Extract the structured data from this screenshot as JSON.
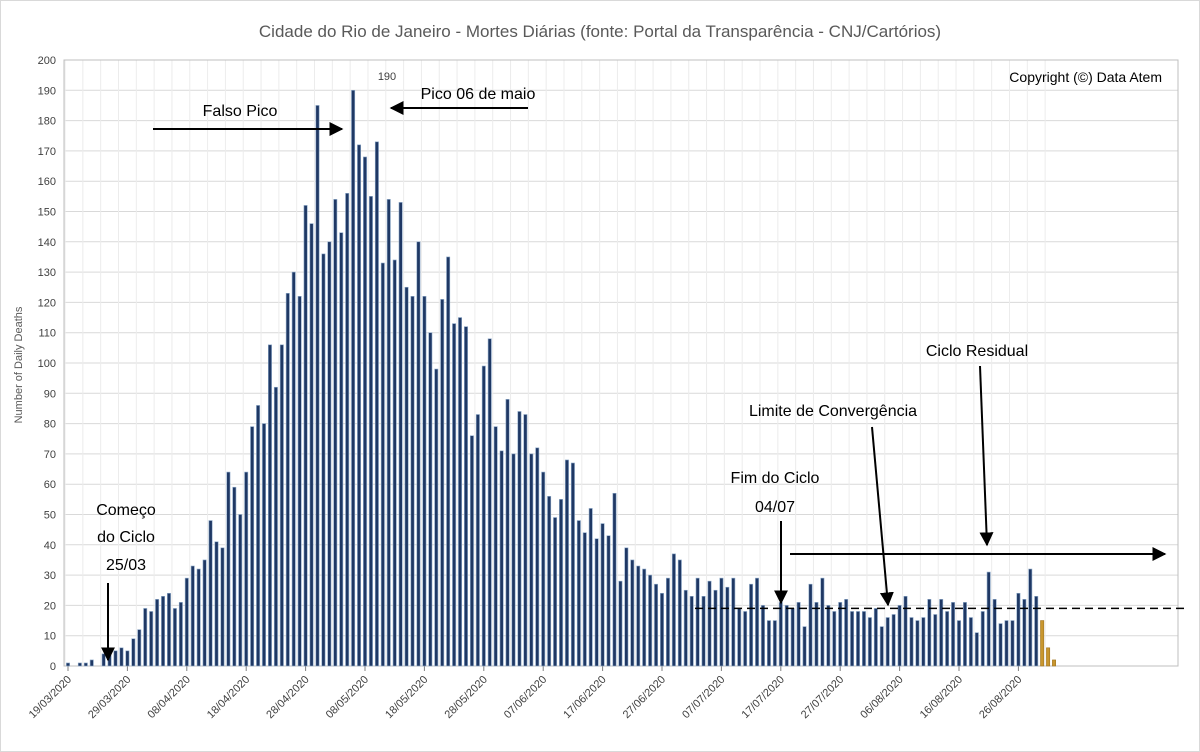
{
  "chart_data": {
    "type": "bar",
    "title": "Cidade do Rio de Janeiro  - Mortes Diárias (fonte: Portal da Transparência - CNJ/Cartórios)",
    "ylabel": "Number of Daily Deaths",
    "xlabel": "",
    "ylim": [
      0,
      200
    ],
    "ytick_step": 10,
    "grid": "both",
    "start_date": "19/03/2020",
    "x_tick_labels": [
      "19/03/2020",
      "29/03/2020",
      "08/04/2020",
      "18/04/2020",
      "28/04/2020",
      "08/05/2020",
      "18/05/2020",
      "28/05/2020",
      "07/06/2020",
      "17/06/2020",
      "27/06/2020",
      "07/07/2020",
      "17/07/2020",
      "27/07/2020",
      "06/08/2020",
      "16/08/2020",
      "26/08/2020"
    ],
    "values": [
      1,
      0,
      1,
      1,
      2,
      0,
      4,
      4,
      5,
      6,
      5,
      9,
      12,
      19,
      18,
      22,
      23,
      24,
      19,
      21,
      29,
      33,
      32,
      35,
      48,
      41,
      39,
      64,
      59,
      50,
      64,
      79,
      86,
      80,
      106,
      92,
      106,
      123,
      130,
      122,
      152,
      146,
      185,
      136,
      140,
      154,
      143,
      156,
      190,
      172,
      168,
      155,
      173,
      133,
      154,
      134,
      153,
      125,
      122,
      140,
      122,
      110,
      98,
      121,
      135,
      113,
      115,
      112,
      76,
      83,
      99,
      108,
      79,
      71,
      88,
      70,
      84,
      83,
      70,
      72,
      64,
      56,
      49,
      55,
      68,
      67,
      48,
      44,
      52,
      42,
      47,
      43,
      57,
      28,
      39,
      35,
      33,
      32,
      30,
      27,
      24,
      29,
      37,
      35,
      25,
      23,
      29,
      23,
      28,
      25,
      29,
      26,
      29,
      19,
      18,
      27,
      29,
      20,
      15,
      15,
      21,
      20,
      19,
      21,
      13,
      27,
      21,
      29,
      20,
      18,
      21,
      22,
      18,
      18,
      18,
      16,
      19,
      13,
      16,
      17,
      20,
      23,
      16,
      15,
      16,
      22,
      17,
      22,
      18,
      21,
      15,
      21,
      16,
      11,
      18,
      31,
      22,
      14,
      15,
      15,
      24,
      22,
      32,
      23,
      15,
      6,
      2
    ],
    "highlight_last": 3,
    "bar_color": "#1F3864",
    "bar_edge": "#8EA9C8",
    "highlight_color": "#C8962E",
    "peak_label": "190",
    "annotations": {
      "copyright": "Copyright (©) Data Atem",
      "falso_pico": "Falso Pico",
      "pico": "Pico 06 de maio",
      "comeco_line1": "Começo",
      "comeco_line2": "do Ciclo",
      "comeco_line3": "25/03",
      "fim_line1": "Fim do Ciclo",
      "fim_line2": "04/07",
      "limite": "Limite de Convergência",
      "residual": "Ciclo Residual"
    },
    "reference_line": {
      "value": 19,
      "style": "dashed"
    }
  }
}
